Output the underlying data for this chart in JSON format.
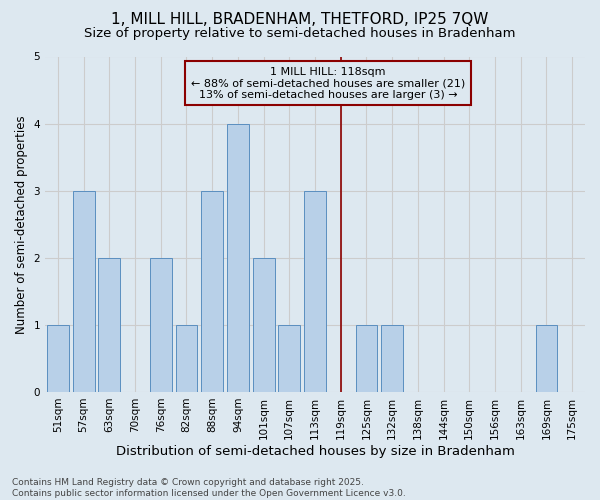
{
  "title": "1, MILL HILL, BRADENHAM, THETFORD, IP25 7QW",
  "subtitle": "Size of property relative to semi-detached houses in Bradenham",
  "xlabel": "Distribution of semi-detached houses by size in Bradenham",
  "ylabel": "Number of semi-detached properties",
  "categories": [
    "51sqm",
    "57sqm",
    "63sqm",
    "70sqm",
    "76sqm",
    "82sqm",
    "88sqm",
    "94sqm",
    "101sqm",
    "107sqm",
    "113sqm",
    "119sqm",
    "125sqm",
    "132sqm",
    "138sqm",
    "144sqm",
    "150sqm",
    "156sqm",
    "163sqm",
    "169sqm",
    "175sqm"
  ],
  "values": [
    1,
    3,
    2,
    0,
    2,
    1,
    3,
    4,
    2,
    1,
    3,
    0,
    1,
    1,
    0,
    0,
    0,
    0,
    0,
    1,
    0
  ],
  "bar_color": "#b8d0e8",
  "bar_edge_color": "#5a8fc0",
  "highlight_index": 11,
  "highlight_line_color": "#8b0000",
  "annotation_text": "1 MILL HILL: 118sqm\n← 88% of semi-detached houses are smaller (21)\n13% of semi-detached houses are larger (3) →",
  "annotation_box_color": "#8b0000",
  "ylim": [
    0,
    5
  ],
  "yticks": [
    0,
    1,
    2,
    3,
    4,
    5
  ],
  "grid_color": "#cccccc",
  "bg_color": "#dde8f0",
  "footer": "Contains HM Land Registry data © Crown copyright and database right 2025.\nContains public sector information licensed under the Open Government Licence v3.0.",
  "title_fontsize": 11,
  "subtitle_fontsize": 9.5,
  "xlabel_fontsize": 9.5,
  "ylabel_fontsize": 8.5,
  "tick_fontsize": 7.5,
  "annotation_fontsize": 8,
  "footer_fontsize": 6.5
}
